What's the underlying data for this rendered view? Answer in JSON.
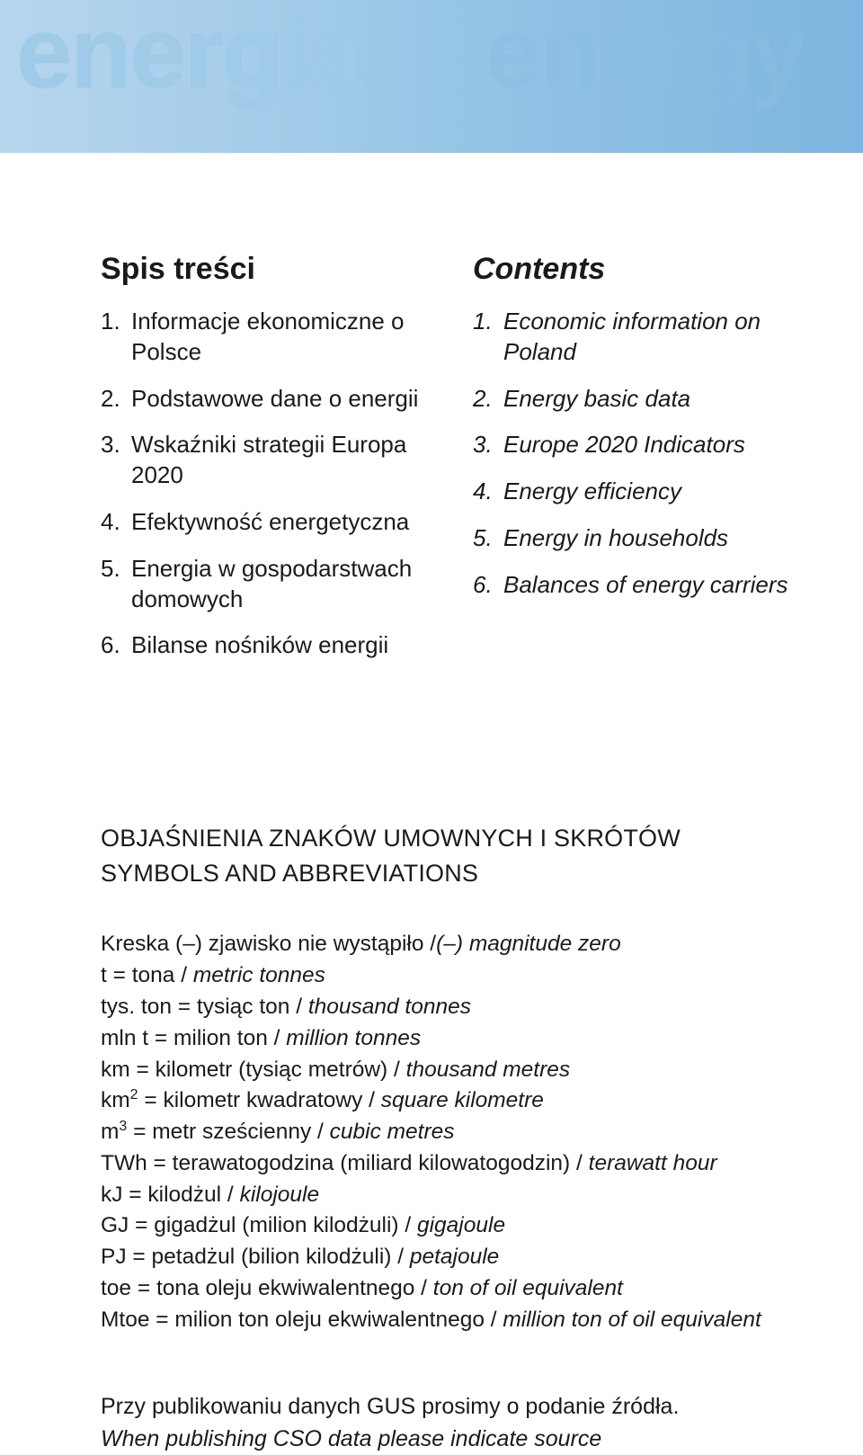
{
  "banner": {
    "word_left": "energia",
    "word_right": "energy",
    "gradient_from": "#b7d6ee",
    "gradient_to": "#7cb5df",
    "text_left_color": "#a0cbe8",
    "text_right_color": "#8abfe2"
  },
  "toc": {
    "left": {
      "title": "Spis treści",
      "items": [
        {
          "n": "1.",
          "t": "Informacje ekonomiczne o Polsce"
        },
        {
          "n": "2.",
          "t": "Podstawowe dane o energii"
        },
        {
          "n": "3.",
          "t": "Wskaźniki strategii Europa  2020"
        },
        {
          "n": "4.",
          "t": "Efektywność energetyczna"
        },
        {
          "n": "5.",
          "t": "Energia w gospodarstwach domowych"
        },
        {
          "n": "6.",
          "t": "Bilanse nośników energii"
        }
      ]
    },
    "right": {
      "title": "Contents",
      "items": [
        {
          "n": "1.",
          "t": "Economic information on Poland"
        },
        {
          "n": "2.",
          "t": "Energy basic data"
        },
        {
          "n": "3.",
          "t": "Europe 2020 Indicators"
        },
        {
          "n": "4.",
          "t": "Energy efficiency"
        },
        {
          "n": "5.",
          "t": "Energy in households"
        },
        {
          "n": "6.",
          "t": "Balances of energy carriers"
        }
      ]
    }
  },
  "symbols": {
    "heading_pl": "OBJAŚNIENIA ZNAKÓW UMOWNYCH I SKRÓTÓW",
    "heading_en": "SYMBOLS  AND ABBREVIATIONS",
    "lines": [
      {
        "pl": "Kreska (–)  zjawisko nie wystąpiło /",
        "en": "(–)  magnitude zero"
      },
      {
        "pl": "t = tona / ",
        "en": "metric tonnes"
      },
      {
        "pl": "tys. ton = tysiąc ton / ",
        "en": "thousand tonnes"
      },
      {
        "pl": "mln t = milion ton / ",
        "en": "million tonnes"
      },
      {
        "pl": "km = kilometr (tysiąc metrów) / ",
        "en": "thousand metres"
      },
      {
        "pl_html": "km<sup>2</sup> = kilometr kwadratowy / ",
        "en": "square kilometre"
      },
      {
        "pl_html": "m<sup>3</sup> = metr sześcienny / ",
        "en": "cubic metres"
      },
      {
        "pl": "TWh = terawatogodzina (miliard kilowatogodzin) / ",
        "en": "terawatt hour"
      },
      {
        "pl": "kJ = kilodżul / ",
        "en": "kilojoule"
      },
      {
        "pl": "GJ = gigadżul (milion kilodżuli) / ",
        "en": "gigajoule"
      },
      {
        "pl": "PJ = petadżul (bilion kilodżuli) / ",
        "en": "petajoule"
      },
      {
        "pl": "toe = tona oleju ekwiwalentnego / ",
        "en": "ton of oil equivalent"
      },
      {
        "pl": "Mtoe = milion ton oleju ekwiwalentnego / ",
        "en": "million ton of oil equivalent"
      }
    ]
  },
  "footer": {
    "pl": "Przy publikowaniu danych GUS prosimy o podanie źródła.",
    "en": "When publishing CSO data please indicate source"
  },
  "typography": {
    "body_font": "Helvetica Neue",
    "heading_weight": 700,
    "toc_fontsize_pt": 20,
    "abbrev_fontsize_pt": 18,
    "text_color": "#1a1a1a",
    "bg_color": "#ffffff"
  }
}
